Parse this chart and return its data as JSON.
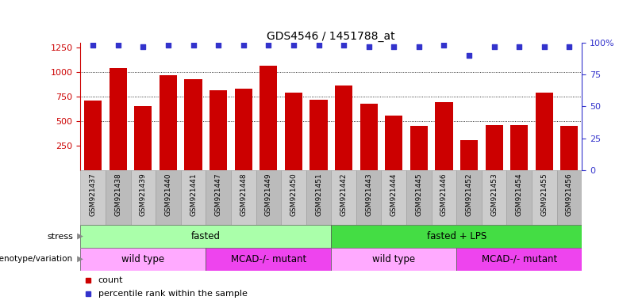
{
  "title": "GDS4546 / 1451788_at",
  "samples": [
    "GSM921437",
    "GSM921438",
    "GSM921439",
    "GSM921440",
    "GSM921441",
    "GSM921447",
    "GSM921448",
    "GSM921449",
    "GSM921450",
    "GSM921451",
    "GSM921442",
    "GSM921443",
    "GSM921444",
    "GSM921445",
    "GSM921446",
    "GSM921452",
    "GSM921453",
    "GSM921454",
    "GSM921455",
    "GSM921456"
  ],
  "counts": [
    710,
    1040,
    650,
    965,
    925,
    815,
    830,
    1065,
    790,
    720,
    860,
    680,
    555,
    455,
    695,
    305,
    460,
    460,
    790,
    450
  ],
  "percentile_ranks": [
    98,
    98,
    97,
    98,
    98,
    98,
    98,
    98,
    98,
    98,
    98,
    97,
    97,
    97,
    98,
    90,
    97,
    97,
    97,
    97
  ],
  "bar_color": "#cc0000",
  "dot_color": "#3333cc",
  "ylim_left": [
    0,
    1300
  ],
  "ylim_right": [
    0,
    100
  ],
  "yticks_left": [
    250,
    500,
    750,
    1000,
    1250
  ],
  "yticks_right": [
    0,
    25,
    50,
    75,
    100
  ],
  "grid_values": [
    500,
    750,
    1000
  ],
  "stress_labels": [
    {
      "text": "fasted",
      "start": 0,
      "end": 9,
      "color": "#aaffaa"
    },
    {
      "text": "fasted + LPS",
      "start": 10,
      "end": 19,
      "color": "#44dd44"
    }
  ],
  "genotype_labels": [
    {
      "text": "wild type",
      "start": 0,
      "end": 4,
      "color": "#ffaaff"
    },
    {
      "text": "MCAD-/- mutant",
      "start": 5,
      "end": 9,
      "color": "#ee44ee"
    },
    {
      "text": "wild type",
      "start": 10,
      "end": 14,
      "color": "#ffaaff"
    },
    {
      "text": "MCAD-/- mutant",
      "start": 15,
      "end": 19,
      "color": "#ee44ee"
    }
  ],
  "legend_items": [
    {
      "label": "count",
      "color": "#cc0000",
      "marker": "s"
    },
    {
      "label": "percentile rank within the sample",
      "color": "#3333cc",
      "marker": "s"
    }
  ],
  "background_color": "#ffffff",
  "tick_bg_colors": [
    "#cccccc",
    "#bbbbbb"
  ]
}
